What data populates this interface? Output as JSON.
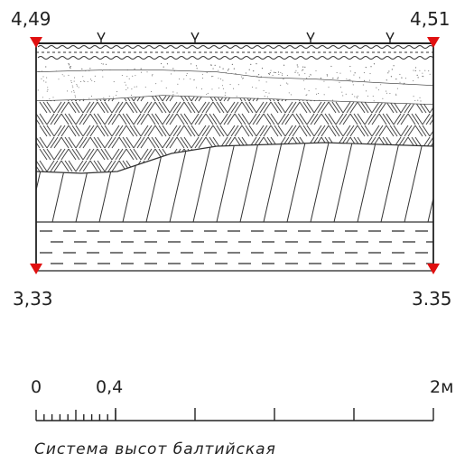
{
  "section": {
    "elevations": {
      "top_left": "4,49",
      "top_right": "4,51",
      "bottom_left": "3,33",
      "bottom_right": "3.35"
    },
    "marker_color": "#e01010",
    "layer_patterns": [
      "soil-vegetation-wave",
      "sand-dotted",
      "brick-parquet",
      "diagonal-hatch",
      "dashed-clay"
    ]
  },
  "scale": {
    "label_zero": "0",
    "label_mid": "0,4",
    "label_end": "2м"
  },
  "note": "Система высот балтийская"
}
